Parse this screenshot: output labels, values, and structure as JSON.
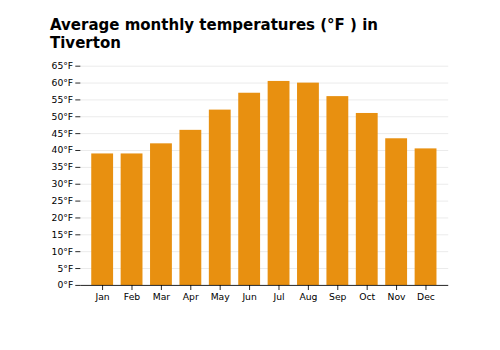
{
  "chart_data": {
    "type": "bar",
    "title": "Average monthly temperatures (°F ) in Tiverton",
    "categories": [
      "Jan",
      "Feb",
      "Mar",
      "Apr",
      "May",
      "Jun",
      "Jul",
      "Aug",
      "Sep",
      "Oct",
      "Nov",
      "Dec"
    ],
    "values": [
      39,
      39,
      42,
      46,
      52,
      57,
      60.5,
      60,
      56,
      51,
      43.5,
      40.5
    ],
    "color": "#E89010",
    "ylim": [
      0,
      65
    ],
    "yticks": [
      {
        "value": 0,
        "label": "0°F"
      },
      {
        "value": 5,
        "label": "5°F"
      },
      {
        "value": 10,
        "label": "10°F"
      },
      {
        "value": 15,
        "label": "15°F"
      },
      {
        "value": 20,
        "label": "20°F"
      },
      {
        "value": 25,
        "label": "25°F"
      },
      {
        "value": 30,
        "label": "30°F"
      },
      {
        "value": 35,
        "label": "35°F"
      },
      {
        "value": 40,
        "label": "40°F"
      },
      {
        "value": 45,
        "label": "45°F"
      },
      {
        "value": 50,
        "label": "50°F"
      },
      {
        "value": 55,
        "label": "55°F"
      },
      {
        "value": 60,
        "label": "60°F"
      },
      {
        "value": 65,
        "label": "65°F"
      }
    ],
    "grid": true
  }
}
